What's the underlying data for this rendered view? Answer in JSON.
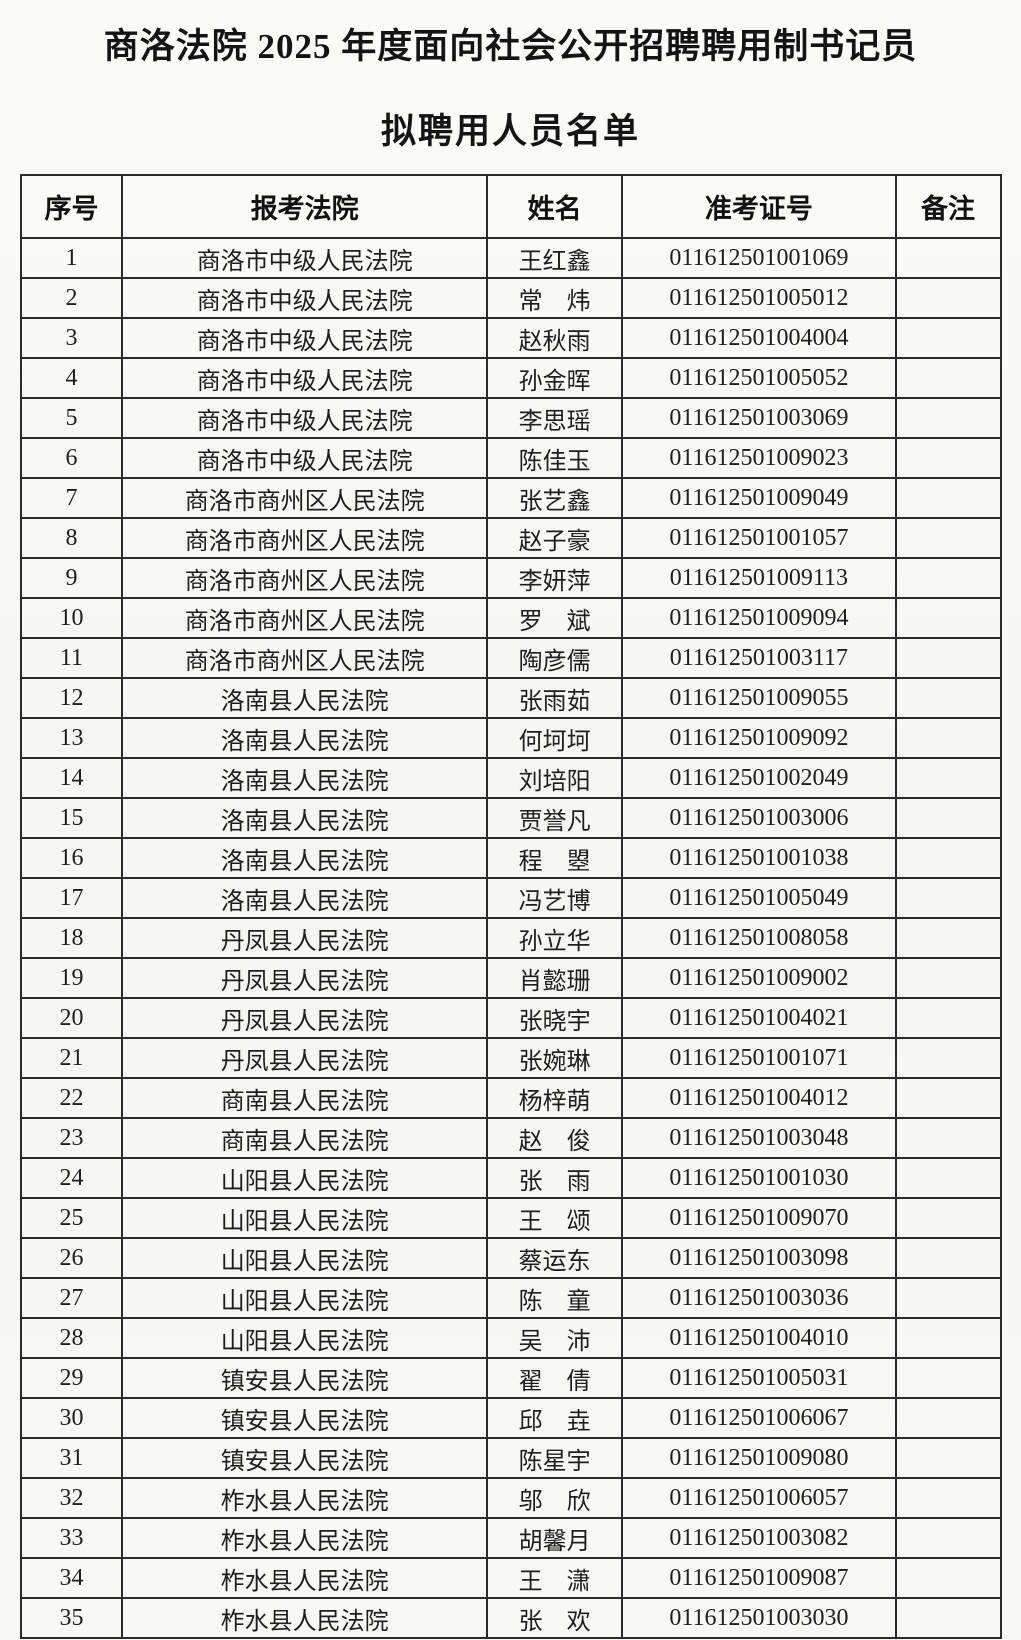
{
  "page": {
    "title": "商洛法院 2025 年度面向社会公开招聘聘用制书记员",
    "subtitle": "拟聘用人员名单"
  },
  "colors": {
    "background": "#f7f7f5",
    "text": "#1c1c1c",
    "border": "#2b2b2b"
  },
  "table": {
    "headers": [
      "序号",
      "报考法院",
      "姓名",
      "准考证号",
      "备注"
    ],
    "rows": [
      {
        "no": "1",
        "court": "商洛市中级人民法院",
        "name": "王红鑫",
        "ticket": "011612501001069",
        "note": ""
      },
      {
        "no": "2",
        "court": "商洛市中级人民法院",
        "name": "常　炜",
        "ticket": "011612501005012",
        "note": ""
      },
      {
        "no": "3",
        "court": "商洛市中级人民法院",
        "name": "赵秋雨",
        "ticket": "011612501004004",
        "note": ""
      },
      {
        "no": "4",
        "court": "商洛市中级人民法院",
        "name": "孙金晖",
        "ticket": "011612501005052",
        "note": ""
      },
      {
        "no": "5",
        "court": "商洛市中级人民法院",
        "name": "李思瑶",
        "ticket": "011612501003069",
        "note": ""
      },
      {
        "no": "6",
        "court": "商洛市中级人民法院",
        "name": "陈佳玉",
        "ticket": "011612501009023",
        "note": ""
      },
      {
        "no": "7",
        "court": "商洛市商州区人民法院",
        "name": "张艺鑫",
        "ticket": "011612501009049",
        "note": ""
      },
      {
        "no": "8",
        "court": "商洛市商州区人民法院",
        "name": "赵子豪",
        "ticket": "011612501001057",
        "note": ""
      },
      {
        "no": "9",
        "court": "商洛市商州区人民法院",
        "name": "李妍萍",
        "ticket": "011612501009113",
        "note": ""
      },
      {
        "no": "10",
        "court": "商洛市商州区人民法院",
        "name": "罗　斌",
        "ticket": "011612501009094",
        "note": ""
      },
      {
        "no": "11",
        "court": "商洛市商州区人民法院",
        "name": "陶彦儒",
        "ticket": "011612501003117",
        "note": ""
      },
      {
        "no": "12",
        "court": "洛南县人民法院",
        "name": "张雨茹",
        "ticket": "011612501009055",
        "note": ""
      },
      {
        "no": "13",
        "court": "洛南县人民法院",
        "name": "何坷坷",
        "ticket": "011612501009092",
        "note": ""
      },
      {
        "no": "14",
        "court": "洛南县人民法院",
        "name": "刘培阳",
        "ticket": "011612501002049",
        "note": ""
      },
      {
        "no": "15",
        "court": "洛南县人民法院",
        "name": "贾誉凡",
        "ticket": "011612501003006",
        "note": ""
      },
      {
        "no": "16",
        "court": "洛南县人民法院",
        "name": "程　曌",
        "ticket": "011612501001038",
        "note": ""
      },
      {
        "no": "17",
        "court": "洛南县人民法院",
        "name": "冯艺博",
        "ticket": "011612501005049",
        "note": ""
      },
      {
        "no": "18",
        "court": "丹凤县人民法院",
        "name": "孙立华",
        "ticket": "011612501008058",
        "note": ""
      },
      {
        "no": "19",
        "court": "丹凤县人民法院",
        "name": "肖懿珊",
        "ticket": "011612501009002",
        "note": ""
      },
      {
        "no": "20",
        "court": "丹凤县人民法院",
        "name": "张晓宇",
        "ticket": "011612501004021",
        "note": ""
      },
      {
        "no": "21",
        "court": "丹凤县人民法院",
        "name": "张婉琳",
        "ticket": "011612501001071",
        "note": ""
      },
      {
        "no": "22",
        "court": "商南县人民法院",
        "name": "杨梓萌",
        "ticket": "011612501004012",
        "note": ""
      },
      {
        "no": "23",
        "court": "商南县人民法院",
        "name": "赵　俊",
        "ticket": "011612501003048",
        "note": ""
      },
      {
        "no": "24",
        "court": "山阳县人民法院",
        "name": "张　雨",
        "ticket": "011612501001030",
        "note": ""
      },
      {
        "no": "25",
        "court": "山阳县人民法院",
        "name": "王　颂",
        "ticket": "011612501009070",
        "note": ""
      },
      {
        "no": "26",
        "court": "山阳县人民法院",
        "name": "蔡运东",
        "ticket": "011612501003098",
        "note": ""
      },
      {
        "no": "27",
        "court": "山阳县人民法院",
        "name": "陈　童",
        "ticket": "011612501003036",
        "note": ""
      },
      {
        "no": "28",
        "court": "山阳县人民法院",
        "name": "吴　沛",
        "ticket": "011612501004010",
        "note": ""
      },
      {
        "no": "29",
        "court": "镇安县人民法院",
        "name": "翟　倩",
        "ticket": "011612501005031",
        "note": ""
      },
      {
        "no": "30",
        "court": "镇安县人民法院",
        "name": "邱　垚",
        "ticket": "011612501006067",
        "note": ""
      },
      {
        "no": "31",
        "court": "镇安县人民法院",
        "name": "陈星宇",
        "ticket": "011612501009080",
        "note": ""
      },
      {
        "no": "32",
        "court": "柞水县人民法院",
        "name": "邬　欣",
        "ticket": "011612501006057",
        "note": ""
      },
      {
        "no": "33",
        "court": "柞水县人民法院",
        "name": "胡馨月",
        "ticket": "011612501003082",
        "note": ""
      },
      {
        "no": "34",
        "court": "柞水县人民法院",
        "name": "王　潇",
        "ticket": "011612501009087",
        "note": ""
      },
      {
        "no": "35",
        "court": "柞水县人民法院",
        "name": "张　欢",
        "ticket": "011612501003030",
        "note": ""
      }
    ]
  }
}
